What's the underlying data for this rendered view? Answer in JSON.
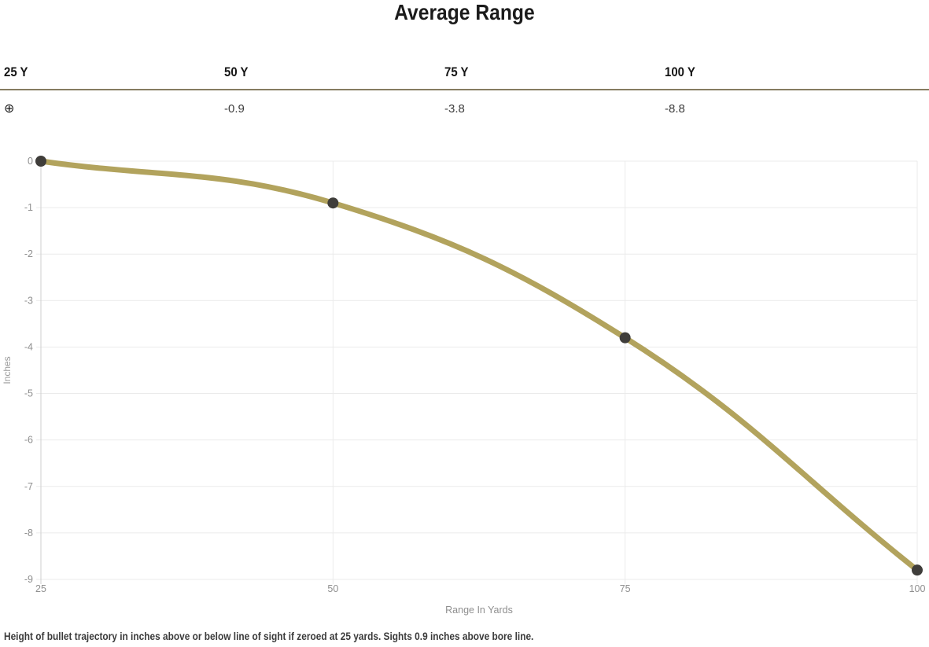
{
  "page": {
    "title": "Average Range",
    "footnote": "Height of bullet trajectory in inches above or below line of sight if zeroed at 25 yards. Sights 0.9 inches above bore line."
  },
  "range_table": {
    "columns": [
      {
        "label": "25 Y",
        "value": "⊕"
      },
      {
        "label": "50 Y",
        "value": "-0.9"
      },
      {
        "label": "75 Y",
        "value": "-3.8"
      },
      {
        "label": "100 Y",
        "value": "-8.8"
      }
    ]
  },
  "chart_data": {
    "type": "line",
    "title": "Average Range",
    "x": [
      25,
      50,
      75,
      100
    ],
    "values": [
      0,
      -0.9,
      -3.8,
      -8.8
    ],
    "xlabel": "Range In Yards",
    "ylabel": "Inches",
    "xticks": [
      25,
      50,
      75,
      100
    ],
    "yticks": [
      0,
      -1,
      -2,
      -3,
      -4,
      -5,
      -6,
      -7,
      -8,
      -9
    ],
    "xlim": [
      25,
      100
    ],
    "ylim": [
      -9,
      0
    ],
    "grid": true,
    "legend": "none",
    "line_color": "#b2a35d",
    "point_color": "#3f3d3a",
    "grid_color": "#ebebeb",
    "axis_color": "#cfcfcf",
    "tick_text_color": "#8f8f8f",
    "axis_label_color": "#999999"
  },
  "colors": {
    "accent_tan": "#b2a35d",
    "table_rule": "#867c60",
    "title_text": "#1b1b1b"
  }
}
